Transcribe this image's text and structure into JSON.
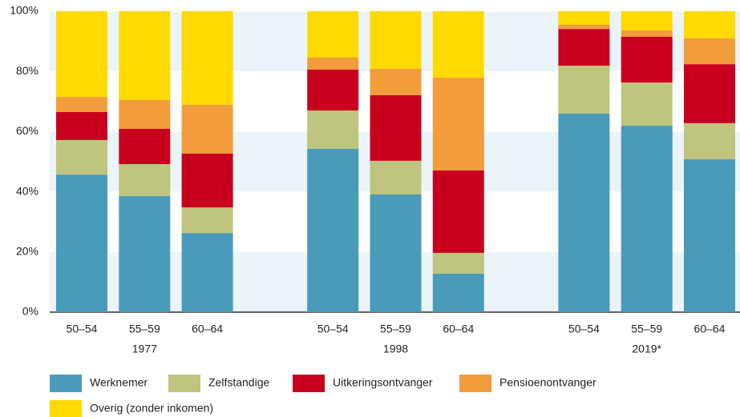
{
  "chart_data": {
    "type": "stacked_bar",
    "categories": [
      "50–54",
      "55–59",
      "60–64",
      "50–54",
      "55–59",
      "60–64",
      "50–54",
      "55–59",
      "60–64"
    ],
    "groups": [
      "1977",
      "1998",
      "2019*"
    ],
    "series": [
      {
        "name": "Werknemer",
        "color": "#4a9bb9",
        "values": [
          45.7,
          38.6,
          26.3,
          54.3,
          39.1,
          12.8,
          66.0,
          62.0,
          50.8
        ]
      },
      {
        "name": "Zelfstandige",
        "color": "#bfc47e",
        "values": [
          11.5,
          10.6,
          8.5,
          12.7,
          11.2,
          6.9,
          15.9,
          14.3,
          12.0
        ]
      },
      {
        "name": "Uitkeringsontvanger",
        "color": "#c8001e",
        "values": [
          9.3,
          11.7,
          17.9,
          13.6,
          21.8,
          27.4,
          12.2,
          15.2,
          19.6
        ]
      },
      {
        "name": "Pensioenontvanger",
        "color": "#f29c3c",
        "values": [
          5.0,
          9.6,
          16.2,
          4.0,
          8.8,
          30.8,
          1.4,
          2.1,
          8.6
        ]
      },
      {
        "name": "Overig (zonder inkomen)",
        "color": "#ffda00",
        "values": [
          28.5,
          29.5,
          31.1,
          15.4,
          19.1,
          22.1,
          4.5,
          6.4,
          9.0
        ]
      }
    ],
    "ylim": [
      0,
      100
    ],
    "yticks": [
      {
        "value": 0,
        "label": "0%"
      },
      {
        "value": 20,
        "label": "20%"
      },
      {
        "value": 40,
        "label": "40%"
      },
      {
        "value": 60,
        "label": "60%"
      },
      {
        "value": 80,
        "label": "80%"
      },
      {
        "value": 100,
        "label": "100%"
      }
    ]
  }
}
